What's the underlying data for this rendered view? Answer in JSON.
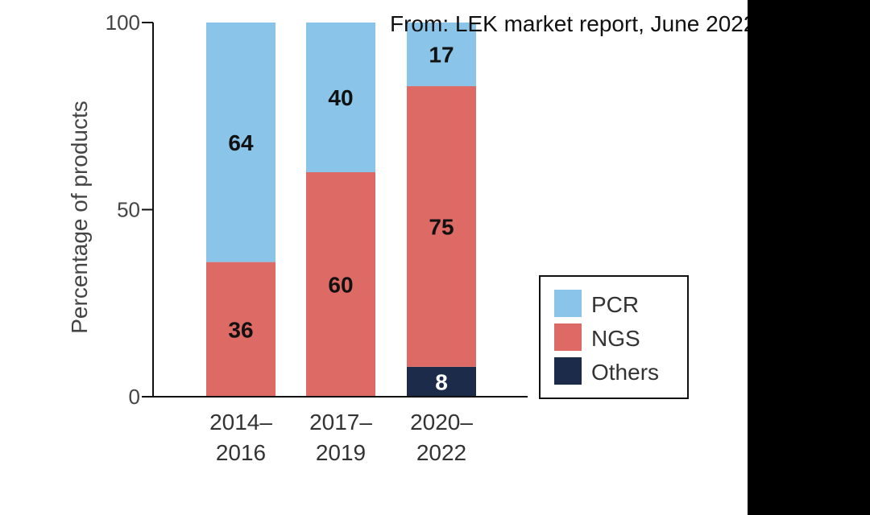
{
  "source_note": "From: LEK market report, June 2022",
  "chart_data": {
    "type": "bar",
    "stacked": true,
    "title": "",
    "xlabel": "",
    "ylabel": "Percentage of products",
    "ylim": [
      0,
      100
    ],
    "yticks": [
      "0",
      "50",
      "100"
    ],
    "categories": [
      [
        "2014–",
        "2016"
      ],
      [
        "2017–",
        "2019"
      ],
      [
        "2020–",
        "2022"
      ]
    ],
    "series": [
      {
        "name": "Others",
        "color": "#1c2b4a",
        "values": [
          0,
          0,
          8
        ],
        "labels": [
          "",
          "",
          "8"
        ]
      },
      {
        "name": "NGS",
        "color": "#de6a66",
        "values": [
          36,
          60,
          75
        ],
        "labels": [
          "36",
          "60",
          "75"
        ]
      },
      {
        "name": "PCR",
        "color": "#8ac4e8",
        "values": [
          64,
          40,
          17
        ],
        "labels": [
          "64",
          "40",
          "17"
        ]
      }
    ],
    "legend": {
      "position": "right",
      "items": [
        {
          "name": "PCR",
          "color": "#8ac4e8"
        },
        {
          "name": "NGS",
          "color": "#de6a66"
        },
        {
          "name": "Others",
          "color": "#1c2b4a"
        }
      ]
    },
    "grid": false
  }
}
